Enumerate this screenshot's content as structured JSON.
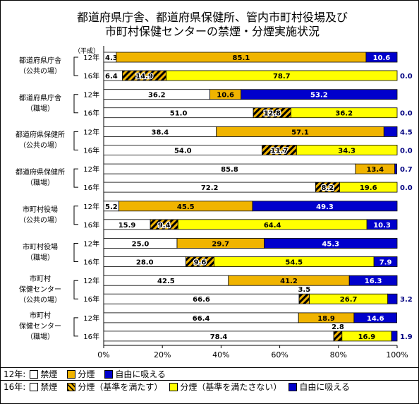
{
  "chart_data": {
    "type": "bar",
    "orientation": "horizontal",
    "stacked": true,
    "title_line1": "都道府県庁舎、都道府県保健所、管内市町村役場及び",
    "title_line2": "市町村保健センターの禁煙・分煙実施状況",
    "unit_label": "（平成）",
    "xlim": [
      0,
      100
    ],
    "x_tick_labels": [
      "0%",
      "20%",
      "40%",
      "60%",
      "80%",
      "100%"
    ],
    "grid": false,
    "legend_placement": "bottom",
    "legend": {
      "row12_prefix": "12年:",
      "row12_items": [
        "禁煙",
        "分煙",
        "自由に吸える"
      ],
      "row16_prefix": "16年:",
      "row16_items": [
        "禁煙",
        "分煙（基準を満たす）",
        "分煙（基準を満たさない）",
        "自由に吸える"
      ]
    },
    "colors": {
      "kinen": "#ffffff",
      "bunen12": "#f0b400",
      "kijun_ok": "#f0b400",
      "kijun_ng": "#ffff00",
      "jiyu": "#0000cc"
    },
    "groups": [
      {
        "label": "都道府県庁舎\n（公共の場）",
        "bars": [
          {
            "year": "12年",
            "values": [
              4.3,
              85.1,
              10.6
            ],
            "labels": [
              "4.3",
              "85.1",
              "10.6"
            ]
          },
          {
            "year": "16年",
            "values": [
              6.4,
              14.9,
              78.7,
              0.0
            ],
            "labels": [
              "6.4",
              "14.9",
              "78.7",
              "0.0"
            ]
          }
        ]
      },
      {
        "label": "都道府県庁舎\n（職場）",
        "bars": [
          {
            "year": "12年",
            "values": [
              36.2,
              10.6,
              53.2
            ],
            "labels": [
              "36.2",
              "10.6",
              "53.2"
            ]
          },
          {
            "year": "16年",
            "values": [
              51.0,
              12.8,
              36.2,
              0.0
            ],
            "labels": [
              "51.0",
              "12.8",
              "36.2",
              "0.0"
            ]
          }
        ]
      },
      {
        "label": "都道府県保健所\n（公共の場）",
        "bars": [
          {
            "year": "12年",
            "values": [
              38.4,
              57.1,
              4.5
            ],
            "labels": [
              "38.4",
              "57.1",
              "4.5"
            ]
          },
          {
            "year": "16年",
            "values": [
              54.0,
              11.7,
              34.3,
              0.0
            ],
            "labels": [
              "54.0",
              "11.7",
              "34.3",
              "0.0"
            ]
          }
        ]
      },
      {
        "label": "都道府県保健所\n（職場）",
        "bars": [
          {
            "year": "12年",
            "values": [
              85.8,
              13.4,
              0.7
            ],
            "labels": [
              "85.8",
              "13.4",
              "0.7"
            ]
          },
          {
            "year": "16年",
            "values": [
              72.2,
              8.2,
              19.6,
              0.0
            ],
            "labels": [
              "72.2",
              "8.2",
              "19.6",
              "0.0"
            ]
          }
        ]
      },
      {
        "label": "市町村役場\n（公共の場）",
        "bars": [
          {
            "year": "12年",
            "values": [
              5.2,
              45.5,
              49.3
            ],
            "labels": [
              "5.2",
              "45.5",
              "49.3"
            ]
          },
          {
            "year": "16年",
            "values": [
              15.9,
              9.4,
              64.4,
              10.3
            ],
            "labels": [
              "15.9",
              "9.4",
              "64.4",
              "10.3"
            ]
          }
        ]
      },
      {
        "label": "市町村役場\n（職場）",
        "bars": [
          {
            "year": "12年",
            "values": [
              25.0,
              29.7,
              45.3
            ],
            "labels": [
              "25.0",
              "29.7",
              "45.3"
            ]
          },
          {
            "year": "16年",
            "values": [
              28.0,
              9.6,
              54.5,
              7.9
            ],
            "labels": [
              "28.0",
              "9.6",
              "54.5",
              "7.9"
            ]
          }
        ]
      },
      {
        "label": "市町村\n保健センター\n（公共の場）",
        "bars": [
          {
            "year": "12年",
            "values": [
              42.5,
              41.2,
              16.3
            ],
            "labels": [
              "42.5",
              "41.2",
              "16.3"
            ]
          },
          {
            "year": "16年",
            "values": [
              66.6,
              3.5,
              26.7,
              3.2
            ],
            "labels": [
              "66.6",
              "3.5",
              "26.7",
              "3.2"
            ]
          }
        ]
      },
      {
        "label": "市町村\n保健センター\n（職場）",
        "bars": [
          {
            "year": "12年",
            "values": [
              66.4,
              18.9,
              14.6
            ],
            "labels": [
              "66.4",
              "18.9",
              "14.6"
            ]
          },
          {
            "year": "16年",
            "values": [
              78.4,
              2.8,
              16.9,
              1.9
            ],
            "labels": [
              "78.4",
              "2.8",
              "16.9",
              "1.9"
            ]
          }
        ]
      }
    ]
  }
}
